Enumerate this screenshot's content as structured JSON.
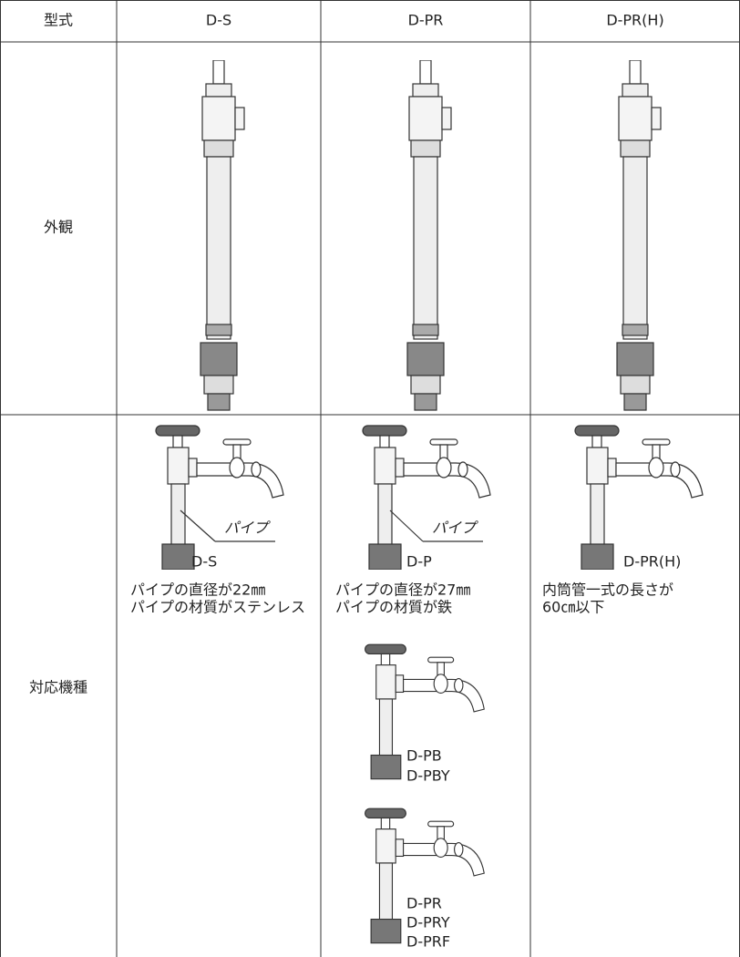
{
  "table": {
    "header": [
      "型式",
      "D-S",
      "D-PR",
      "D-PR(H)"
    ],
    "rows": [
      {
        "label": "外観"
      },
      {
        "label": "対応機種",
        "cells": [
          {
            "pipe_label": "パイプ",
            "model": "D-S",
            "notes": [
              "パイプの直径が22㎜",
              "パイプの材質がステンレス"
            ]
          },
          {
            "pipe_label": "パイプ",
            "model": "D-P",
            "notes": [
              "パイプの直径が27㎜",
              "パイプの材質が鉄"
            ],
            "others": [
              [
                "D-PB",
                "D-PBY"
              ],
              [
                "D-PR",
                "D-PRY",
                "D-PRF"
              ]
            ]
          },
          {
            "model": "D-PR(H)",
            "notes": [
              "内筒管一式の長さが",
              "60㎝以下"
            ]
          }
        ]
      }
    ]
  }
}
